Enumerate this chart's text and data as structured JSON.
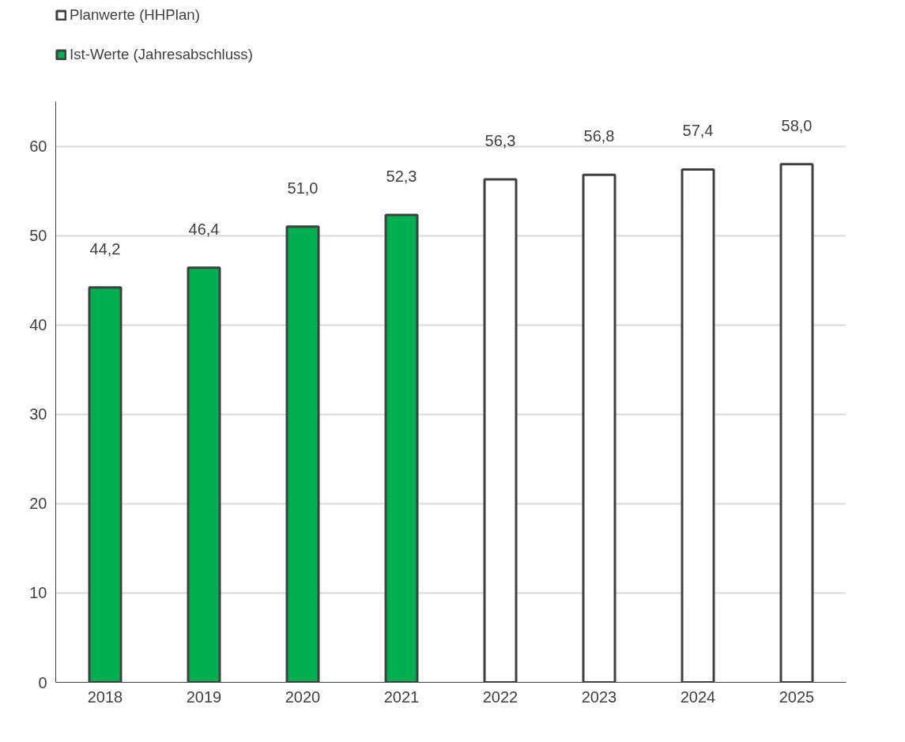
{
  "chart_data": {
    "type": "bar",
    "categories": [
      "2018",
      "2019",
      "2020",
      "2021",
      "2022",
      "2023",
      "2024",
      "2025"
    ],
    "series": [
      {
        "name": "Planwerte (HHPlan)",
        "color": "#ffffff",
        "values": [
          null,
          null,
          null,
          null,
          56.3,
          56.8,
          57.4,
          58.0
        ],
        "value_labels": [
          null,
          null,
          null,
          null,
          "56,3",
          "56,8",
          "57,4",
          "58,0"
        ]
      },
      {
        "name": "Ist-Werte (Jahresabschluss)",
        "color": "#00b050",
        "values": [
          44.2,
          46.4,
          51.0,
          52.3,
          null,
          null,
          null,
          null
        ],
        "value_labels": [
          "44,2",
          "46,4",
          "51,0",
          "52,3",
          null,
          null,
          null,
          null
        ]
      }
    ],
    "ylim": [
      0,
      65
    ],
    "yticks": [
      0,
      10,
      20,
      30,
      40,
      50,
      60
    ],
    "grid": "y",
    "legend": "top left"
  }
}
